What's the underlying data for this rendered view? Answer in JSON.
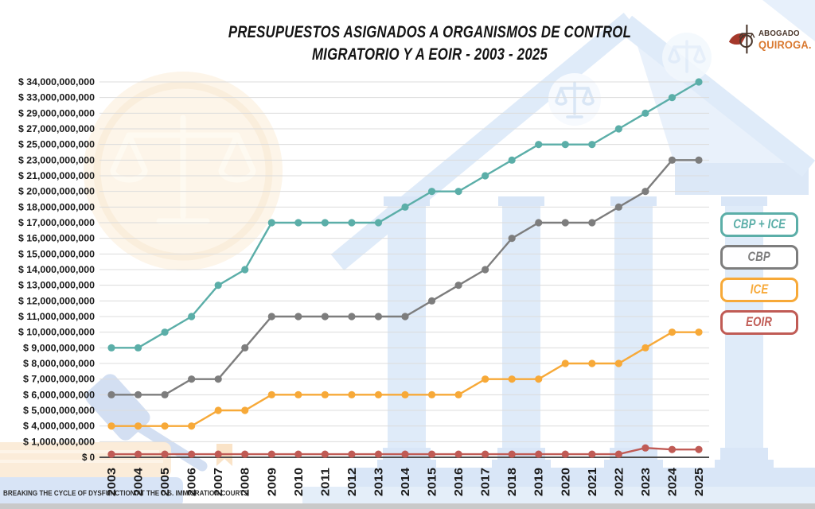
{
  "header": {
    "title_line1": "PRESUPUESTOS ASIGNADOS A ORGANISMOS DE CONTROL",
    "title_line2": "MIGRATORIO Y A EOIR - 2003 - 2025",
    "logo": {
      "name_top": "ABOGADO",
      "name_bottom": "QUIROGA.",
      "color_top": "#4A372C",
      "color_bottom": "#D9782F",
      "wing_color": "#A5382B"
    }
  },
  "footer": {
    "tagline": "BREAKING THE CYCLE OF DYSFUNCTION AT THE U.S. IMMIGRATION COURTS"
  },
  "colors": {
    "grid": "#DCDCDC",
    "axis": "#4D4D4D",
    "label_text": "#1A1A1A",
    "bottom_bar": "#C9C9C9"
  },
  "chart_data": {
    "type": "line",
    "title": "PRESUPUESTOS ASIGNADOS A ORGANISMOS DE CONTROL MIGRATORIO Y A EOIR - 2003 - 2025",
    "units": "USD, billions",
    "grid": true,
    "legend_position": "right",
    "x": [
      2003,
      2004,
      2005,
      2006,
      2007,
      2008,
      2009,
      2010,
      2011,
      2012,
      2013,
      2014,
      2015,
      2016,
      2017,
      2018,
      2019,
      2020,
      2021,
      2022,
      2023,
      2024,
      2025
    ],
    "y_axis": {
      "tick_prefix": "$ ",
      "tick_suffix": ",000,000,000",
      "zero_label": "$ 0",
      "labels_billions": [
        34,
        33,
        29,
        27,
        25,
        23,
        21,
        20,
        18,
        17,
        16,
        15,
        14,
        13,
        12,
        11,
        10,
        9,
        8,
        7,
        6,
        5,
        4,
        1,
        0
      ]
    },
    "series": [
      {
        "name": "CBP + ICE",
        "color": "#5BAEA8",
        "values_billions": [
          9,
          9,
          10,
          11,
          13,
          14,
          17,
          17,
          17,
          17,
          17,
          18,
          20,
          20,
          21,
          23,
          25,
          25,
          25,
          27,
          29,
          33,
          34
        ]
      },
      {
        "name": "CBP",
        "color": "#7D7D7D",
        "values_billions": [
          6,
          6,
          6,
          7,
          7,
          9,
          11,
          11,
          11,
          11,
          11,
          11,
          12,
          13,
          14,
          16,
          17,
          17,
          17,
          18,
          20,
          23,
          23
        ]
      },
      {
        "name": "ICE",
        "color": "#F7A938",
        "values_billions": [
          4,
          4,
          4,
          4,
          5,
          5,
          6,
          6,
          6,
          6,
          6,
          6,
          6,
          6,
          7,
          7,
          7,
          8,
          8,
          8,
          9,
          10,
          10
        ]
      },
      {
        "name": "EOIR",
        "color": "#C05B55",
        "values_billions": [
          0.2,
          0.2,
          0.2,
          0.2,
          0.2,
          0.2,
          0.2,
          0.2,
          0.2,
          0.2,
          0.2,
          0.2,
          0.2,
          0.2,
          0.2,
          0.2,
          0.2,
          0.2,
          0.2,
          0.2,
          0.6,
          0.5,
          0.5
        ]
      }
    ]
  }
}
